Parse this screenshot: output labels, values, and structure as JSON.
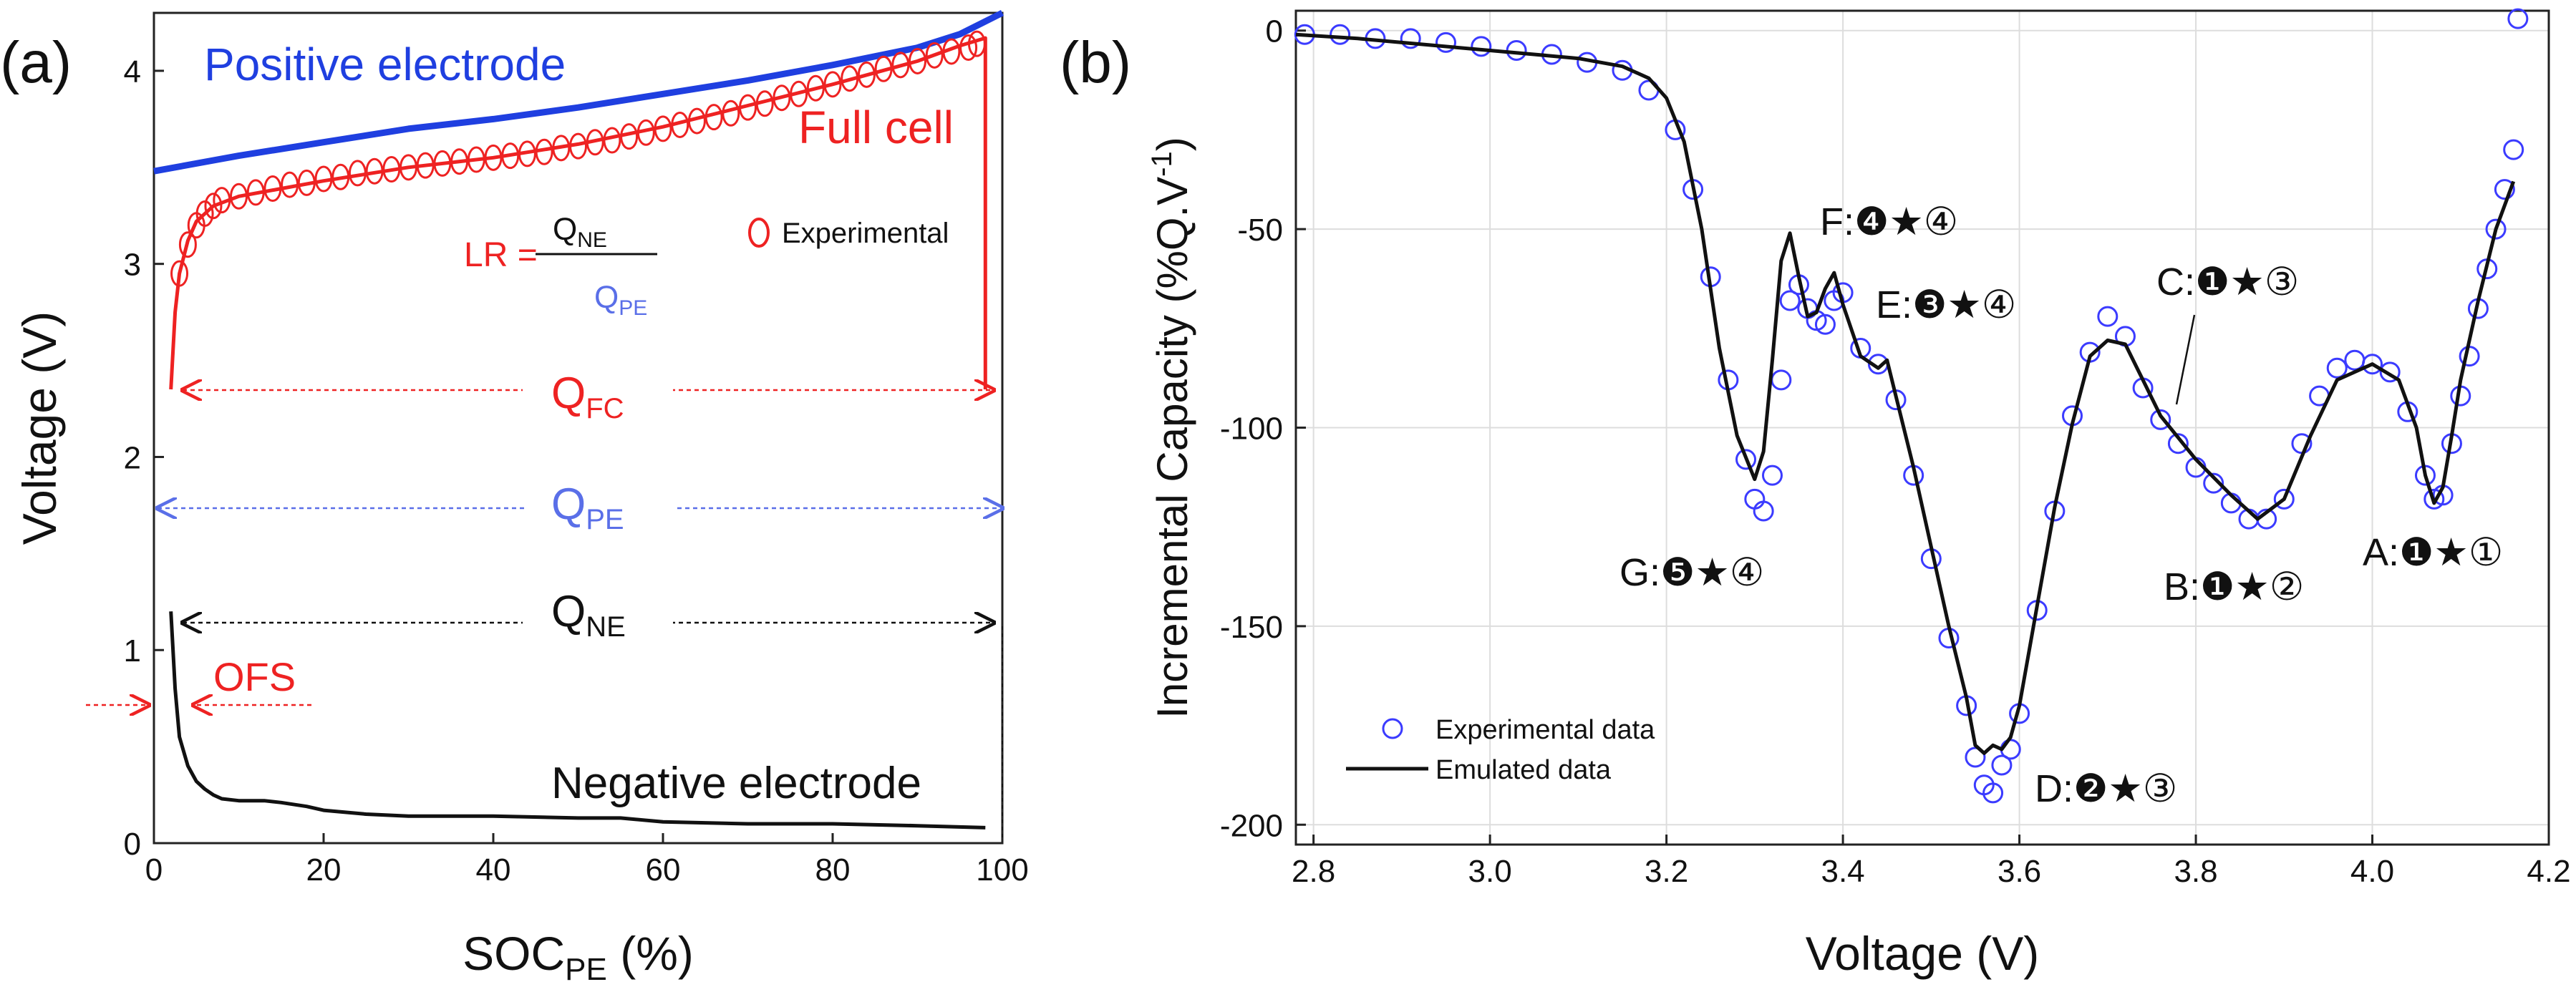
{
  "panel_a": {
    "panel_label": "(a)",
    "legend": {
      "experimental": "Experimental"
    },
    "annotations": {
      "positive": "Positive electrode",
      "fullcell": "Full cell",
      "negative": "Negative electrode",
      "lr_prefix": "LR =",
      "q_ne_sym": "Q",
      "q_ne_sub": "NE",
      "q_pe_sym": "Q",
      "q_pe_sub": "PE",
      "q_fc_sym": "Q",
      "q_fc_sub": "FC",
      "ofs": "OFS"
    },
    "colors": {
      "positive": "#1f3fe0",
      "fullcell": "#ee2222",
      "negative": "#111111",
      "qpe": "#5a6fe8"
    }
  },
  "panel_b": {
    "panel_label": "(b)",
    "peak_labels": [
      {
        "id": "A",
        "text": "A:❶★①"
      },
      {
        "id": "B",
        "text": "B:❶★②"
      },
      {
        "id": "C",
        "text": "C:❶★③"
      },
      {
        "id": "D",
        "text": "D:❷★③"
      },
      {
        "id": "E",
        "text": "E:❸★④"
      },
      {
        "id": "F",
        "text": "F:❹★④"
      },
      {
        "id": "G",
        "text": "G:❺★④"
      }
    ]
  },
  "chart_data": [
    {
      "type": "line",
      "title": "",
      "xlabel": "SOC",
      "xlabel_sub": "PE",
      "xlabel_unit": "(%)",
      "ylabel": "Voltage (V)",
      "xlim": [
        0,
        100
      ],
      "ylim": [
        0,
        4.3
      ],
      "xticks": [
        0,
        20,
        40,
        60,
        80,
        100
      ],
      "yticks": [
        0,
        1,
        2,
        3,
        4
      ],
      "grid": false,
      "series": [
        {
          "name": "Positive electrode",
          "style": "line",
          "x": [
            0,
            10,
            20,
            30,
            40,
            50,
            60,
            70,
            80,
            90,
            95,
            100
          ],
          "y": [
            3.48,
            3.56,
            3.63,
            3.7,
            3.75,
            3.81,
            3.88,
            3.95,
            4.03,
            4.12,
            4.19,
            4.3
          ]
        },
        {
          "name": "Full cell",
          "style": "line",
          "x": [
            2,
            2.5,
            3,
            4,
            5,
            7,
            10,
            15,
            20,
            30,
            40,
            50,
            60,
            70,
            80,
            90,
            95,
            98,
            98
          ],
          "y": [
            2.35,
            2.75,
            2.95,
            3.12,
            3.22,
            3.3,
            3.35,
            3.39,
            3.43,
            3.5,
            3.55,
            3.62,
            3.71,
            3.82,
            3.93,
            4.05,
            4.13,
            4.17,
            2.35
          ]
        },
        {
          "name": "Experimental",
          "style": "markers",
          "x": [
            3,
            4,
            5,
            6,
            7,
            8,
            10,
            12,
            14,
            16,
            18,
            20,
            22,
            24,
            26,
            28,
            30,
            32,
            34,
            36,
            38,
            40,
            42,
            44,
            46,
            48,
            50,
            52,
            54,
            56,
            58,
            60,
            62,
            64,
            66,
            68,
            70,
            72,
            74,
            76,
            78,
            80,
            82,
            84,
            86,
            88,
            90,
            92,
            94,
            96,
            97
          ],
          "y": [
            2.95,
            3.1,
            3.2,
            3.26,
            3.3,
            3.33,
            3.35,
            3.37,
            3.39,
            3.41,
            3.42,
            3.44,
            3.45,
            3.47,
            3.48,
            3.49,
            3.5,
            3.51,
            3.52,
            3.53,
            3.54,
            3.55,
            3.56,
            3.57,
            3.58,
            3.6,
            3.61,
            3.63,
            3.64,
            3.66,
            3.68,
            3.7,
            3.72,
            3.74,
            3.76,
            3.78,
            3.81,
            3.83,
            3.86,
            3.88,
            3.91,
            3.93,
            3.96,
            3.98,
            4.01,
            4.03,
            4.05,
            4.08,
            4.1,
            4.12,
            4.14
          ]
        },
        {
          "name": "Negative electrode",
          "style": "line",
          "x": [
            2,
            2.5,
            3,
            4,
            5,
            6,
            7,
            8,
            10,
            13,
            15,
            18,
            20,
            25,
            30,
            40,
            50,
            55,
            60,
            70,
            80,
            90,
            98
          ],
          "y": [
            1.2,
            0.8,
            0.55,
            0.4,
            0.32,
            0.28,
            0.25,
            0.23,
            0.22,
            0.22,
            0.21,
            0.19,
            0.17,
            0.15,
            0.14,
            0.14,
            0.13,
            0.13,
            0.11,
            0.1,
            0.1,
            0.09,
            0.08
          ]
        }
      ]
    },
    {
      "type": "line",
      "title": "",
      "xlabel": "Voltage (V)",
      "ylabel": "Incremental Capacity (%Q.V",
      "ylabel_sup": "-1",
      "ylabel_close": ")",
      "xlim": [
        2.78,
        4.2
      ],
      "ylim": [
        -205,
        5
      ],
      "xticks": [
        2.8,
        3.0,
        3.2,
        3.4,
        3.6,
        3.8,
        4.0,
        4.2
      ],
      "yticks": [
        0,
        -50,
        -100,
        -150,
        -200
      ],
      "grid": true,
      "legend": [
        "Experimental data",
        "Emulated data"
      ],
      "series": [
        {
          "name": "Emulated data",
          "style": "line",
          "x": [
            2.78,
            2.85,
            2.9,
            3.0,
            3.05,
            3.1,
            3.15,
            3.18,
            3.2,
            3.22,
            3.24,
            3.26,
            3.28,
            3.3,
            3.31,
            3.32,
            3.33,
            3.34,
            3.35,
            3.36,
            3.37,
            3.38,
            3.39,
            3.4,
            3.42,
            3.44,
            3.45,
            3.46,
            3.48,
            3.5,
            3.52,
            3.54,
            3.55,
            3.56,
            3.57,
            3.58,
            3.59,
            3.6,
            3.62,
            3.64,
            3.66,
            3.68,
            3.7,
            3.72,
            3.74,
            3.76,
            3.8,
            3.84,
            3.87,
            3.9,
            3.93,
            3.96,
            4.0,
            4.03,
            4.05,
            4.06,
            4.07,
            4.08,
            4.09,
            4.1,
            4.12,
            4.14,
            4.16
          ],
          "y": [
            -1,
            -2,
            -3,
            -5,
            -6,
            -7,
            -9,
            -12,
            -17,
            -28,
            -50,
            -80,
            -102,
            -113,
            -106,
            -83,
            -58,
            -51,
            -62,
            -72,
            -71,
            -65,
            -61,
            -69,
            -82,
            -85,
            -83,
            -92,
            -110,
            -130,
            -150,
            -168,
            -180,
            -182,
            -180,
            -181,
            -178,
            -170,
            -145,
            -120,
            -99,
            -82,
            -78,
            -79,
            -88,
            -97,
            -108,
            -117,
            -123,
            -118,
            -102,
            -88,
            -84,
            -88,
            -100,
            -112,
            -119,
            -115,
            -102,
            -88,
            -68,
            -50,
            -38
          ]
        },
        {
          "name": "Experimental data",
          "style": "markers",
          "x": [
            2.79,
            2.83,
            2.87,
            2.91,
            2.95,
            2.99,
            3.03,
            3.07,
            3.11,
            3.15,
            3.18,
            3.21,
            3.23,
            3.25,
            3.27,
            3.29,
            3.3,
            3.31,
            3.32,
            3.33,
            3.34,
            3.35,
            3.36,
            3.37,
            3.38,
            3.39,
            3.4,
            3.42,
            3.44,
            3.46,
            3.48,
            3.5,
            3.52,
            3.54,
            3.55,
            3.56,
            3.57,
            3.58,
            3.59,
            3.6,
            3.62,
            3.64,
            3.66,
            3.68,
            3.7,
            3.72,
            3.74,
            3.76,
            3.78,
            3.8,
            3.82,
            3.84,
            3.86,
            3.88,
            3.9,
            3.92,
            3.94,
            3.96,
            3.98,
            4.0,
            4.02,
            4.04,
            4.06,
            4.07,
            4.08,
            4.09,
            4.1,
            4.11,
            4.12,
            4.13,
            4.14,
            4.15,
            4.16,
            4.165
          ],
          "y": [
            -1,
            -1,
            -2,
            -2,
            -3,
            -4,
            -5,
            -6,
            -8,
            -10,
            -15,
            -25,
            -40,
            -62,
            -88,
            -108,
            -118,
            -121,
            -112,
            -88,
            -68,
            -64,
            -70,
            -73,
            -74,
            -68,
            -66,
            -80,
            -84,
            -93,
            -112,
            -133,
            -153,
            -170,
            -183,
            -190,
            -192,
            -185,
            -181,
            -172,
            -146,
            -121,
            -97,
            -81,
            -72,
            -77,
            -90,
            -98,
            -104,
            -110,
            -114,
            -119,
            -123,
            -123,
            -118,
            -104,
            -92,
            -85,
            -83,
            -84,
            -86,
            -96,
            -112,
            -118,
            -117,
            -104,
            -92,
            -82,
            -70,
            -60,
            -50,
            -40,
            -30,
            3
          ]
        }
      ]
    }
  ]
}
